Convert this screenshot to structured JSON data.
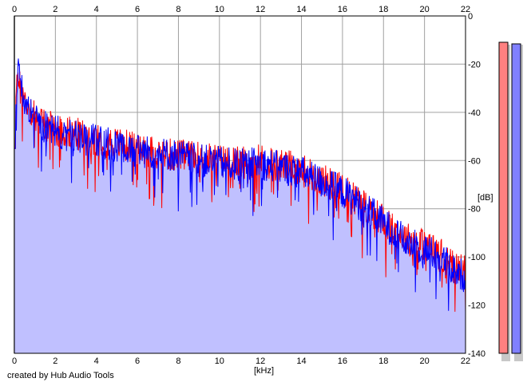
{
  "chart_data": {
    "type": "area",
    "title": "",
    "xlabel": "[kHz]",
    "ylabel": "[dB]",
    "xlim": [
      0,
      22
    ],
    "ylim": [
      -140,
      0
    ],
    "x_ticks": [
      0,
      2,
      4,
      6,
      8,
      10,
      12,
      14,
      16,
      18,
      20,
      22
    ],
    "y_ticks": [
      0,
      -20,
      -40,
      -60,
      -80,
      -100,
      -120,
      -140
    ],
    "y_tick_labels": [
      "0",
      "-20",
      "-40",
      "-60",
      "-80",
      "-100",
      "-120",
      "-140"
    ],
    "grid": true,
    "series": [
      {
        "color": "#ff0000",
        "x": [
          0,
          0.15,
          0.3,
          0.5,
          0.75,
          1,
          1.5,
          2,
          2.5,
          3,
          3.5,
          4,
          5,
          6,
          7,
          8,
          9,
          10,
          11,
          12,
          13,
          14,
          15,
          16,
          17,
          18,
          19,
          20,
          20.5,
          21,
          21.5,
          22
        ],
        "y": [
          -55,
          -22,
          -30,
          -35,
          -38,
          -42,
          -45,
          -47,
          -48,
          -49,
          -50,
          -51,
          -53,
          -55,
          -57,
          -58,
          -59,
          -60,
          -61,
          -60,
          -62,
          -64,
          -68,
          -72,
          -78,
          -85,
          -92,
          -95,
          -97,
          -100,
          -104,
          -106
        ]
      },
      {
        "color": "#0000ff",
        "x": [
          0,
          0.15,
          0.3,
          0.5,
          0.75,
          1,
          1.5,
          2,
          2.5,
          3,
          3.5,
          4,
          5,
          6,
          7,
          8,
          9,
          10,
          11,
          12,
          13,
          14,
          15,
          16,
          17,
          18,
          19,
          20,
          20.5,
          21,
          21.5,
          22
        ],
        "y": [
          -55,
          -20,
          -28,
          -36,
          -39,
          -43,
          -46,
          -48,
          -49,
          -50,
          -51,
          -52,
          -54,
          -56,
          -57,
          -58,
          -60,
          -61,
          -62,
          -61,
          -63,
          -65,
          -69,
          -73,
          -79,
          -86,
          -93,
          -97,
          -99,
          -102,
          -106,
          -108
        ]
      }
    ],
    "fill_color": "#c0c0ff",
    "meters": [
      {
        "color": "#ff8080",
        "level": 0.0
      },
      {
        "color": "#8080ff",
        "level": 0.0
      }
    ]
  },
  "footer": {
    "credit": "created by Hub Audio Tools"
  }
}
